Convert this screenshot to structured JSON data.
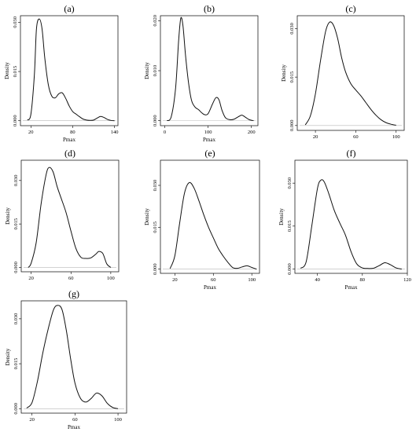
{
  "chart_data": [
    {
      "type": "line",
      "title": "(a)",
      "xlabel": "Pmax",
      "ylabel": "Density",
      "xlim": [
        5,
        145
      ],
      "ylim": [
        -0.0015,
        0.032
      ],
      "xticks": [
        20,
        80,
        140
      ],
      "yticks": [
        0.0,
        0.015,
        0.03
      ],
      "ytick_labels": [
        "0.000",
        "0.015",
        "0.030"
      ],
      "series": [
        {
          "x": [
            15,
            20,
            25,
            28,
            32,
            36,
            40,
            45,
            50,
            55,
            60,
            65,
            70,
            75,
            80,
            85,
            90,
            95,
            100,
            105,
            110,
            115,
            120,
            125,
            130,
            135,
            140
          ],
          "y": [
            0.0002,
            0.002,
            0.014,
            0.028,
            0.031,
            0.028,
            0.019,
            0.011,
            0.0075,
            0.007,
            0.0082,
            0.0085,
            0.0068,
            0.0045,
            0.0028,
            0.002,
            0.0012,
            0.0005,
            0.0002,
            0.0001,
            0.0002,
            0.0008,
            0.0013,
            0.001,
            0.0004,
            0.0001,
            0.0
          ]
        }
      ]
    },
    {
      "type": "line",
      "title": "(b)",
      "xlabel": "Pmax",
      "ylabel": "Density",
      "xlim": [
        -10,
        215
      ],
      "ylim": [
        -0.001,
        0.021
      ],
      "xticks": [
        0,
        100,
        200
      ],
      "yticks": [
        0.0,
        0.01,
        0.02
      ],
      "ytick_labels": [
        "0.000",
        "0.010",
        "0.020"
      ],
      "series": [
        {
          "x": [
            5,
            15,
            25,
            32,
            37,
            42,
            48,
            55,
            62,
            70,
            78,
            85,
            92,
            100,
            110,
            118,
            125,
            132,
            140,
            150,
            160,
            170,
            178,
            186,
            195,
            205
          ],
          "y": [
            0.0,
            0.0008,
            0.0065,
            0.016,
            0.0205,
            0.019,
            0.013,
            0.0075,
            0.004,
            0.0027,
            0.0022,
            0.0016,
            0.0012,
            0.0014,
            0.0033,
            0.0046,
            0.0042,
            0.0021,
            0.0006,
            0.0002,
            0.0003,
            0.0008,
            0.0011,
            0.0007,
            0.0002,
            0.0
          ]
        }
      ]
    },
    {
      "type": "line",
      "title": "(c)",
      "xlabel": "",
      "ylabel": "Density",
      "xlim": [
        2,
        108
      ],
      "ylim": [
        -0.0015,
        0.034
      ],
      "xticks": [
        20,
        60,
        100
      ],
      "yticks": [
        0.0,
        0.015,
        0.03
      ],
      "ytick_labels": [
        "0.000",
        "0.015",
        "0.030"
      ],
      "series": [
        {
          "x": [
            10,
            15,
            20,
            25,
            30,
            34,
            38,
            42,
            46,
            50,
            55,
            60,
            65,
            70,
            75,
            80,
            85,
            90,
            95,
            100
          ],
          "y": [
            0.0002,
            0.003,
            0.0098,
            0.02,
            0.029,
            0.032,
            0.031,
            0.027,
            0.021,
            0.0165,
            0.013,
            0.011,
            0.0092,
            0.0071,
            0.005,
            0.0032,
            0.0018,
            0.0009,
            0.0004,
            0.0001
          ]
        }
      ]
    },
    {
      "type": "line",
      "title": "(d)",
      "xlabel": "",
      "ylabel": "Density",
      "xlim": [
        10,
        108
      ],
      "ylim": [
        -0.0015,
        0.037
      ],
      "xticks": [
        20,
        60,
        100
      ],
      "yticks": [
        0.0,
        0.015,
        0.03
      ],
      "ytick_labels": [
        "0.000",
        "0.015",
        "0.030"
      ],
      "series": [
        {
          "x": [
            17,
            20,
            25,
            30,
            35,
            38,
            42,
            46,
            50,
            55,
            60,
            65,
            70,
            75,
            80,
            85,
            88,
            92,
            96,
            100
          ],
          "y": [
            0.0,
            0.0015,
            0.0085,
            0.022,
            0.032,
            0.0345,
            0.033,
            0.028,
            0.024,
            0.019,
            0.0125,
            0.0065,
            0.0035,
            0.0031,
            0.0033,
            0.0046,
            0.0055,
            0.0048,
            0.0012,
            0.0
          ]
        }
      ]
    },
    {
      "type": "line",
      "title": "(e)",
      "xlabel": "Pmax",
      "ylabel": "Density",
      "xlim": [
        5,
        108
      ],
      "ylim": [
        -0.0015,
        0.039
      ],
      "xticks": [
        20,
        60,
        100
      ],
      "yticks": [
        0.0,
        0.015,
        0.03
      ],
      "ytick_labels": [
        "0.000",
        "0.015",
        "0.030"
      ],
      "series": [
        {
          "x": [
            15,
            20,
            25,
            30,
            35,
            40,
            45,
            50,
            55,
            60,
            65,
            70,
            75,
            80,
            85,
            90,
            95,
            100,
            105
          ],
          "y": [
            0.0002,
            0.0048,
            0.0165,
            0.0272,
            0.031,
            0.029,
            0.0245,
            0.0195,
            0.015,
            0.0112,
            0.0075,
            0.0048,
            0.0025,
            0.0006,
            0.0003,
            0.0008,
            0.0012,
            0.0006,
            0.0
          ]
        }
      ]
    },
    {
      "type": "line",
      "title": "(f)",
      "xlabel": "Pmax",
      "ylabel": "Density",
      "xlim": [
        20,
        120
      ],
      "ylim": [
        -0.0015,
        0.038
      ],
      "xticks": [
        40,
        80,
        120
      ],
      "yticks": [
        0.0,
        0.015,
        0.03
      ],
      "ytick_labels": [
        "0.000",
        "0.015",
        "0.030"
      ],
      "series": [
        {
          "x": [
            25,
            30,
            35,
            40,
            43,
            46,
            50,
            55,
            60,
            65,
            70,
            75,
            80,
            85,
            90,
            95,
            100,
            105,
            110,
            115
          ],
          "y": [
            0.0003,
            0.0025,
            0.015,
            0.028,
            0.031,
            0.0305,
            0.0265,
            0.0205,
            0.016,
            0.0118,
            0.006,
            0.0018,
            0.0004,
            0.0002,
            0.0003,
            0.0012,
            0.0022,
            0.0015,
            0.0004,
            0.0
          ]
        }
      ]
    },
    {
      "type": "line",
      "title": "(g)",
      "xlabel": "Pmax",
      "ylabel": "Density",
      "xlim": [
        10,
        108
      ],
      "ylim": [
        -0.0015,
        0.036
      ],
      "xticks": [
        20,
        60,
        100
      ],
      "yticks": [
        0.0,
        0.015,
        0.03
      ],
      "ytick_labels": [
        "0.000",
        "0.015",
        "0.030"
      ],
      "series": [
        {
          "x": [
            15,
            20,
            25,
            30,
            35,
            40,
            44,
            48,
            52,
            56,
            60,
            65,
            70,
            75,
            80,
            85,
            90,
            95,
            100
          ],
          "y": [
            0.0002,
            0.002,
            0.009,
            0.0185,
            0.0265,
            0.033,
            0.0345,
            0.033,
            0.026,
            0.0165,
            0.0085,
            0.0035,
            0.0022,
            0.0034,
            0.0052,
            0.0043,
            0.0018,
            0.0004,
            0.0
          ]
        }
      ]
    }
  ]
}
